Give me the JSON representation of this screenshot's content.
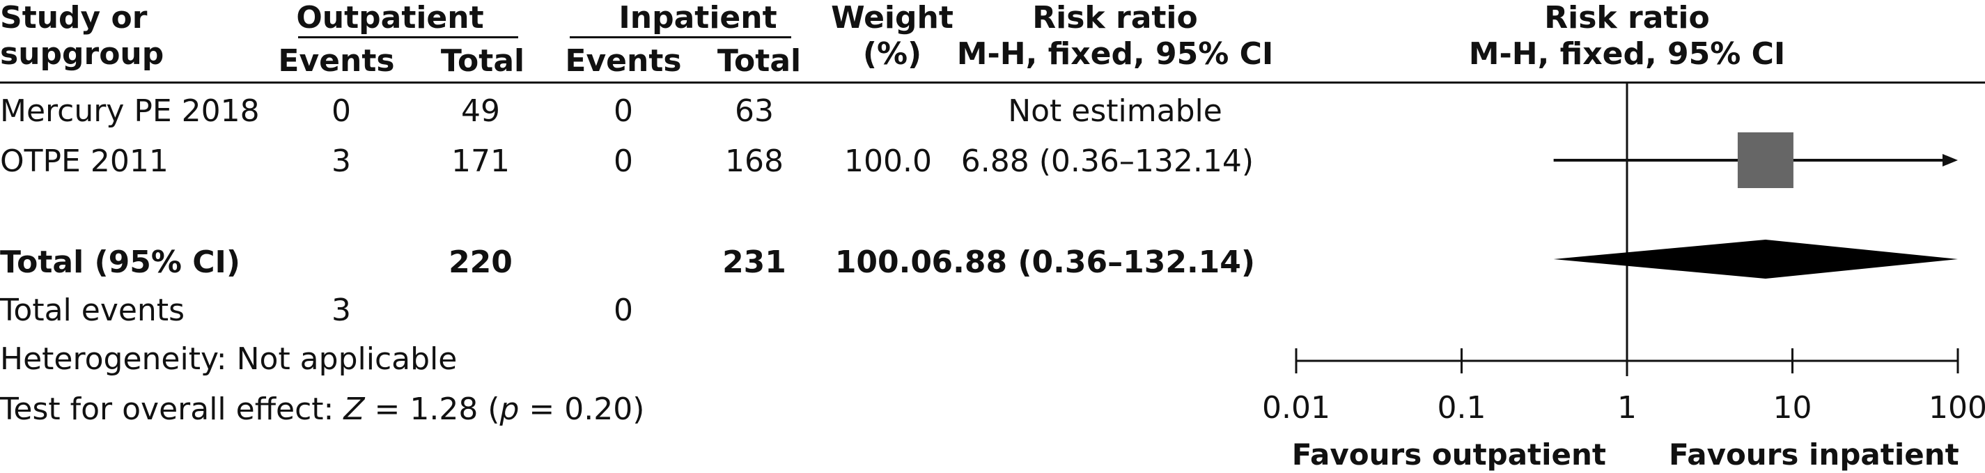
{
  "header": {
    "study_label_1": "Study or",
    "study_label_2": "supgroup",
    "group1": "Outpatient",
    "group2": "Inpatient",
    "events": "Events",
    "total": "Total",
    "weight_1": "Weight",
    "weight_2": "(%)",
    "rr_1": "Risk ratio",
    "rr_2": "M-H, fixed, 95% CI",
    "plot_rr_1": "Risk ratio",
    "plot_rr_2": "M-H, fixed, 95% CI"
  },
  "rows": [
    {
      "study": "Mercury PE 2018",
      "out_events": "0",
      "out_total": "49",
      "in_events": "0",
      "in_total": "63",
      "weight": "",
      "rr": "Not estimable"
    },
    {
      "study": "OTPE 2011",
      "out_events": "3",
      "out_total": "171",
      "in_events": "0",
      "in_total": "168",
      "weight": "100.0",
      "rr": "6.88 (0.36–132.14)"
    }
  ],
  "total_row": {
    "label": "Total (95% CI)",
    "out_total": "220",
    "in_total": "231",
    "weight": "100.0",
    "rr": "6.88 (0.36–132.14)"
  },
  "total_events": {
    "label": "Total events",
    "out_events": "3",
    "in_events": "0"
  },
  "heterogeneity": "Heterogeneity: Not applicable",
  "overall_effect": {
    "prefix": "Test for overall effect: ",
    "z_symbol": "Z",
    "z_value": " = 1.28 (",
    "p_symbol": "p",
    "p_value": " = 0.20)"
  },
  "axis": {
    "ticks": [
      "0.01",
      "0.1",
      "1",
      "10",
      "100"
    ],
    "favours_left": "Favours outpatient",
    "favours_right": "Favours inpatient"
  },
  "chart_data": {
    "type": "forest",
    "scale": "log",
    "xlim": [
      0.01,
      100
    ],
    "reference_line": 1,
    "studies": [
      {
        "name": "Mercury PE 2018",
        "rr": null,
        "ci_low": null,
        "ci_high": null,
        "weight": null,
        "estimable": false
      },
      {
        "name": "OTPE 2011",
        "rr": 6.88,
        "ci_low": 0.36,
        "ci_high": 132.14,
        "weight": 100.0,
        "estimable": true
      }
    ],
    "pooled": {
      "rr": 6.88,
      "ci_low": 0.36,
      "ci_high": 132.14
    },
    "colors": {
      "study_box": "#666666",
      "diamond": "#000000",
      "lines": "#111111"
    }
  }
}
